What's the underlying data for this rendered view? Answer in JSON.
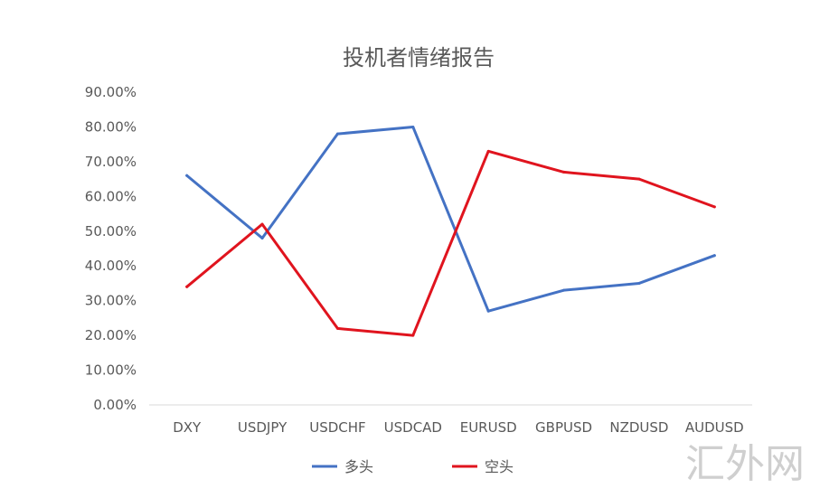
{
  "watermark": "汇外网",
  "chart_data": {
    "type": "line",
    "title": "投机者情绪报告",
    "xlabel": "",
    "ylabel": "",
    "categories": [
      "DXY",
      "USDJPY",
      "USDCHF",
      "USDCAD",
      "EURUSD",
      "GBPUSD",
      "NZDUSD",
      "AUDUSD"
    ],
    "yticks": [
      "0.00%",
      "10.00%",
      "20.00%",
      "30.00%",
      "40.00%",
      "50.00%",
      "60.00%",
      "70.00%",
      "80.00%",
      "90.00%"
    ],
    "ylim": [
      0,
      90
    ],
    "grid": false,
    "legend_position": "bottom",
    "series": [
      {
        "name": "多头",
        "color": "#4472C4",
        "values": [
          66,
          48,
          78,
          80,
          27,
          33,
          35,
          43
        ]
      },
      {
        "name": "空头",
        "color": "#E0141E",
        "values": [
          34,
          52,
          22,
          20,
          73,
          67,
          65,
          57
        ]
      }
    ]
  }
}
